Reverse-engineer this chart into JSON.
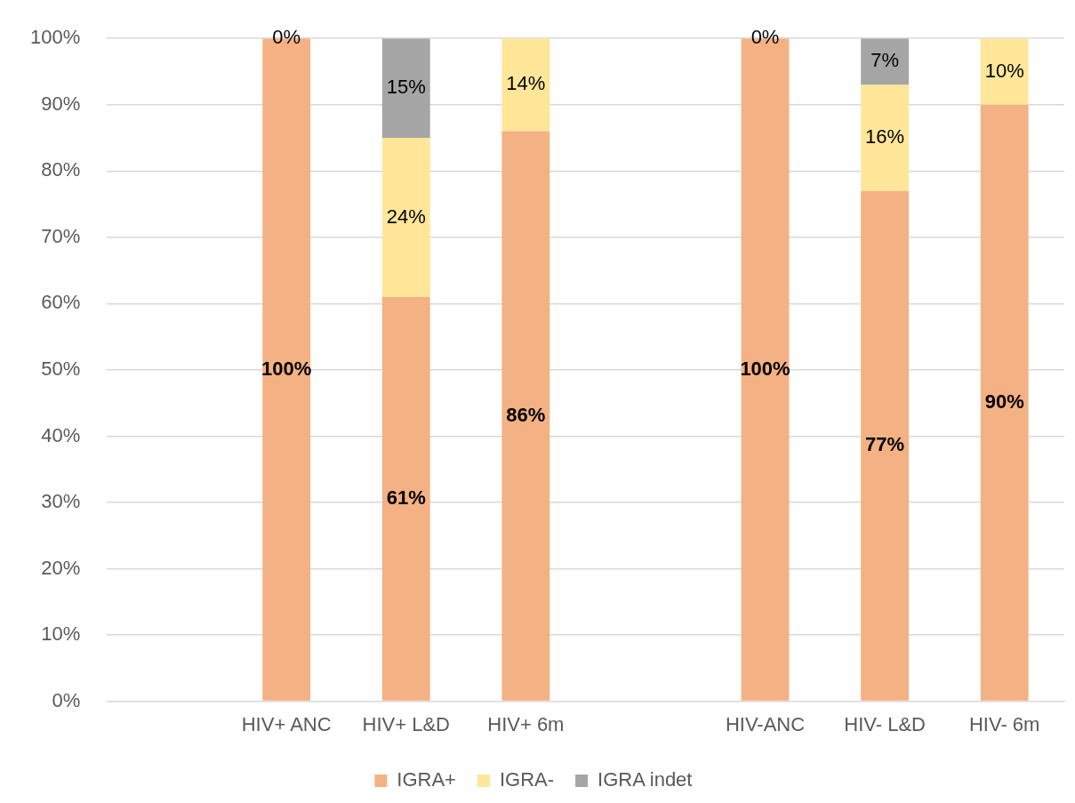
{
  "chart_data": {
    "type": "bar",
    "stacked": true,
    "categories": [
      null,
      "HIV+ ANC",
      "HIV+ L&D",
      "HIV+ 6m",
      null,
      "HIV-ANC",
      "HIV- L&D",
      "HIV- 6m"
    ],
    "series": [
      {
        "name": "IGRA+",
        "color": "#f4b183",
        "values": [
          null,
          100,
          61,
          86,
          null,
          100,
          77,
          90
        ],
        "value_labels": [
          null,
          "100%",
          "61%",
          "86%",
          null,
          "100%",
          "77%",
          "90%"
        ]
      },
      {
        "name": "IGRA-",
        "color": "#ffe699",
        "values": [
          null,
          0,
          24,
          14,
          null,
          0,
          16,
          10
        ],
        "value_labels": [
          null,
          "0%",
          "24%",
          "14%",
          null,
          "0%",
          "16%",
          "10%"
        ]
      },
      {
        "name": "IGRA indet",
        "color": "#a5a5a5",
        "values": [
          null,
          null,
          15,
          null,
          null,
          null,
          7,
          null
        ],
        "value_labels": [
          null,
          null,
          "15%",
          null,
          null,
          null,
          "7%",
          null
        ]
      }
    ],
    "ylim": [
      0,
      100
    ],
    "yticks": [
      {
        "value": 0,
        "label": "0%"
      },
      {
        "value": 10,
        "label": "10%"
      },
      {
        "value": 20,
        "label": "20%"
      },
      {
        "value": 30,
        "label": "30%"
      },
      {
        "value": 40,
        "label": "40%"
      },
      {
        "value": 50,
        "label": "50%"
      },
      {
        "value": 60,
        "label": "60%"
      },
      {
        "value": 70,
        "label": "70%"
      },
      {
        "value": 80,
        "label": "80%"
      },
      {
        "value": 90,
        "label": "90%"
      },
      {
        "value": 100,
        "label": "100%"
      }
    ],
    "grid": "y",
    "legend": "bottom"
  }
}
